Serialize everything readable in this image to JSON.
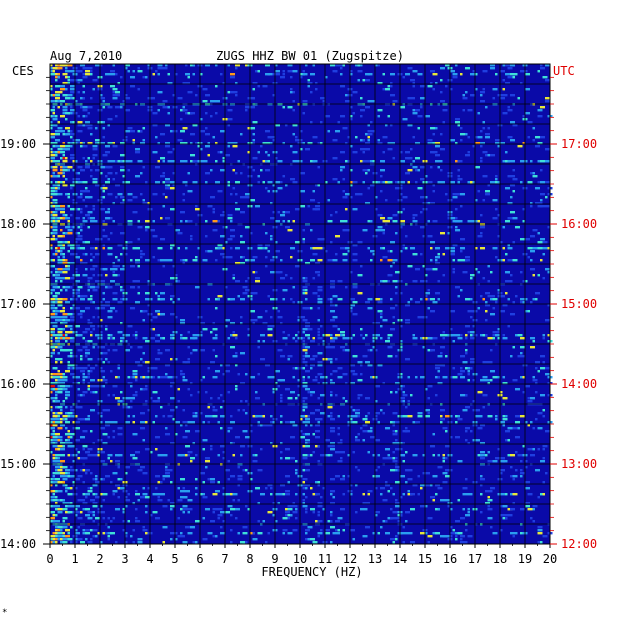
{
  "chart_data": {
    "type": "heatmap",
    "title": "ZUGS HHZ BW 01 (Zugspitze)",
    "date": "Aug 7,2010",
    "left_axis_unit": "CES",
    "right_axis_unit": "UTC",
    "xlabel": "FREQUENCY (HZ)",
    "xlim": [
      0,
      20
    ],
    "x_ticks": [
      "0",
      "1",
      "2",
      "3",
      "4",
      "5",
      "6",
      "7",
      "8",
      "9",
      "10",
      "11",
      "12",
      "13",
      "14",
      "15",
      "16",
      "17",
      "18",
      "19",
      "20"
    ],
    "ylim_hours_ces": [
      14,
      20
    ],
    "y_ticks_left": [
      "14:00",
      "15:00",
      "16:00",
      "17:00",
      "18:00",
      "19:00"
    ],
    "y_ticks_right": [
      "12:00",
      "13:00",
      "14:00",
      "15:00",
      "16:00",
      "17:00"
    ],
    "grid": true,
    "colors": {
      "background": "#0a0aa8",
      "grid": "#000000",
      "left_labels": "#000000",
      "right_labels": "#e00000",
      "scale": [
        "#0a0aa8",
        "#1f3fe0",
        "#2a9ef0",
        "#3fe0d8",
        "#e8e83a",
        "#ff9a1a",
        "#e01010"
      ]
    },
    "footer_mark": "*"
  }
}
